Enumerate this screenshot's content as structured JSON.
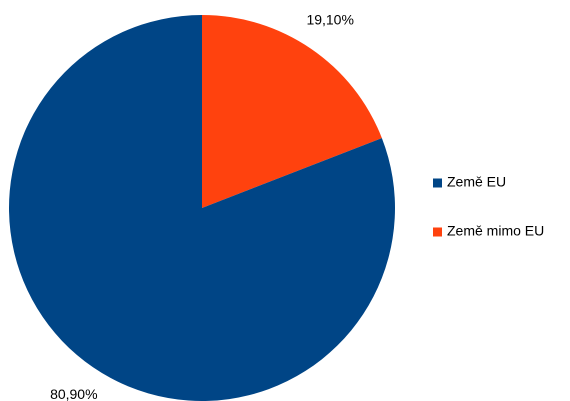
{
  "chart_data": {
    "type": "pie",
    "categories": [
      "Země EU",
      "Země mimo EU"
    ],
    "values": [
      80.9,
      19.1
    ],
    "value_labels": [
      "80,90%",
      "19,10%"
    ],
    "colors": [
      "#004586",
      "#ff420e"
    ],
    "legend": "right"
  }
}
